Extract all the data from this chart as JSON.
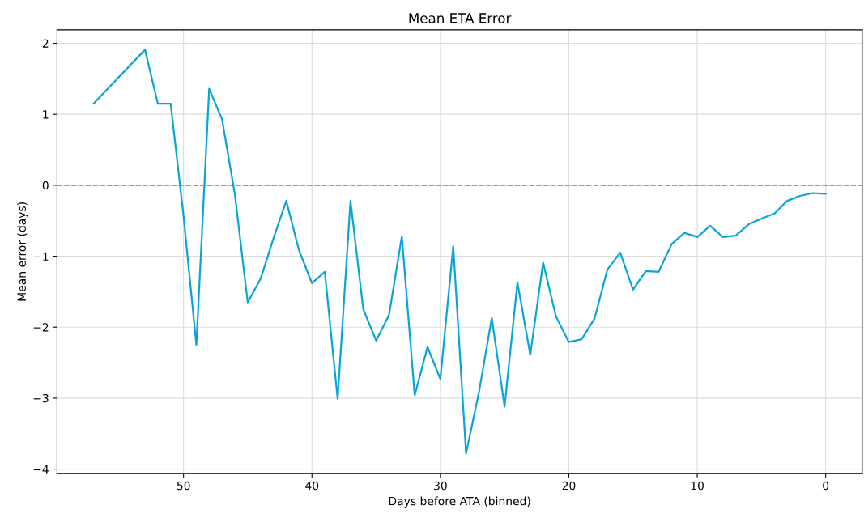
{
  "chart_data": {
    "type": "line",
    "title": "Mean ETA Error",
    "xlabel": "Days before ATA (binned)",
    "ylabel": "Mean error (days)",
    "x": [
      57,
      53,
      52,
      51,
      50,
      49,
      48,
      47,
      46,
      45,
      44,
      43,
      42,
      41,
      40,
      39,
      38,
      37,
      36,
      35,
      34,
      33,
      32,
      31,
      30,
      29,
      28,
      27,
      26,
      25,
      24,
      23,
      22,
      21,
      20,
      19,
      18,
      17,
      16,
      15,
      14,
      13,
      12,
      11,
      10,
      9,
      8,
      7,
      6,
      5,
      4,
      3,
      2,
      1,
      0
    ],
    "series": [
      {
        "color": "#0aa5d8",
        "values": [
          1.15,
          1.91,
          1.15,
          1.15,
          -0.43,
          -2.25,
          1.36,
          0.93,
          -0.13,
          -1.65,
          -1.32,
          -0.75,
          -0.22,
          -0.92,
          -1.38,
          -1.22,
          -3.01,
          -0.22,
          -1.75,
          -2.19,
          -1.83,
          -0.72,
          -2.96,
          -2.28,
          -2.73,
          -0.86,
          -3.78,
          -2.92,
          -1.87,
          -3.12,
          -1.37,
          -2.39,
          -1.09,
          -1.85,
          -2.21,
          -2.17,
          -1.88,
          -1.19,
          -0.95,
          -1.47,
          -1.21,
          -1.22,
          -0.83,
          -0.67,
          -0.73,
          -0.57,
          -0.73,
          -0.71,
          -0.55,
          -0.47,
          -0.4,
          -0.22,
          -0.15,
          -0.11,
          -0.12
        ]
      }
    ],
    "xlim": [
      59.85,
      -2.85
    ],
    "xticks": [
      50,
      40,
      30,
      20,
      10,
      0
    ],
    "ylim": [
      -4.06,
      2.19
    ],
    "yticks": [
      {
        "value": -4,
        "label": "−4"
      },
      {
        "value": -3,
        "label": "−3"
      },
      {
        "value": -2,
        "label": "−2"
      },
      {
        "value": -1,
        "label": "−1"
      },
      0,
      1,
      2
    ],
    "ref_lines": [
      {
        "axis": "y",
        "value": 0,
        "color": "#808080",
        "line_style": "dashed"
      }
    ],
    "grid": true,
    "line_style": "solid",
    "marker": "none"
  }
}
